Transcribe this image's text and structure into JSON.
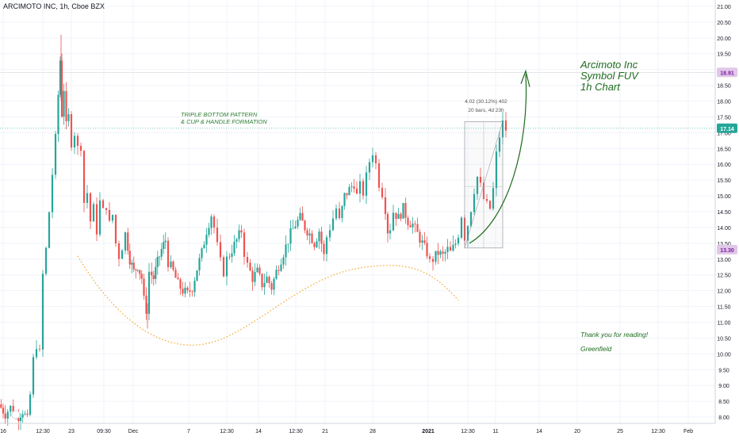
{
  "header": {
    "symbol_line": "ARCIMOTO INC, 1h, Cboe BZX"
  },
  "annotations": {
    "title_lines": [
      "Arcimoto Inc",
      "Symbol FUV",
      "1h Chart"
    ],
    "pattern_lines": [
      "TRIPLE BOTTOM PATTERN",
      "& CUP & HANDLE FORMATION"
    ],
    "thanks": "Thank you for reading!",
    "author": "Greenfield",
    "measure_line1": "4.02 (30.12%) 402",
    "measure_line2": "20 bars, 4d 23h"
  },
  "colors": {
    "up": "#26a69a",
    "down": "#ef5350",
    "cup_curve": "#f5a623",
    "arrow": "#1e6b1e",
    "last_price_bg": "#26a69a",
    "level_bg": "#e1c7e8",
    "level_text": "#7b1fa2"
  },
  "chart_data": {
    "type": "candlestick",
    "price_axis": {
      "ticks": [
        "21.00",
        "20.50",
        "20.00",
        "19.50",
        "19.00",
        "18.50",
        "18.00",
        "17.50",
        "17.00",
        "16.50",
        "16.00",
        "15.50",
        "15.00",
        "14.50",
        "14.00",
        "13.50",
        "13.00",
        "12.50",
        "12.00",
        "11.50",
        "11.00",
        "10.50",
        "10.00",
        "9.50",
        "9.00",
        "8.50",
        "8.00"
      ],
      "range": [
        7.8,
        21.2
      ]
    },
    "time_axis": {
      "ticks": [
        "16",
        "12:30",
        "23",
        "09:30",
        "Dec",
        "7",
        "12:30",
        "14",
        "12:30",
        "21",
        "28",
        "2021",
        "12:30",
        "11",
        "14",
        "20",
        "25",
        "12:30",
        "Feb"
      ]
    },
    "price_labels": [
      {
        "value": 18.91,
        "label": "18.91",
        "style": "level"
      },
      {
        "value": 17.14,
        "label": "17.14",
        "style": "last"
      },
      {
        "value": 13.3,
        "label": "13.30",
        "style": "level"
      }
    ],
    "horizontal_levels": [
      18.91,
      17.14
    ],
    "path": [
      [
        0,
        8.4
      ],
      [
        8,
        8.1
      ],
      [
        15,
        8.3
      ],
      [
        22,
        7.95
      ],
      [
        30,
        8.2
      ],
      [
        36,
        7.9
      ],
      [
        40,
        8.7
      ],
      [
        44,
        9.8
      ],
      [
        48,
        10.3
      ],
      [
        52,
        10.0
      ],
      [
        56,
        12.5
      ],
      [
        60,
        13.3
      ],
      [
        64,
        14.5
      ],
      [
        68,
        15.7
      ],
      [
        72,
        16.8
      ],
      [
        75,
        18.2
      ],
      [
        77,
        19.3
      ],
      [
        79,
        17.6
      ],
      [
        82,
        18.4
      ],
      [
        85,
        17.2
      ],
      [
        88,
        17.5
      ],
      [
        92,
        16.7
      ],
      [
        96,
        17.0
      ],
      [
        100,
        16.5
      ],
      [
        104,
        16.6
      ],
      [
        108,
        14.8
      ],
      [
        112,
        15.1
      ],
      [
        116,
        14.2
      ],
      [
        120,
        14.6
      ],
      [
        124,
        13.9
      ],
      [
        128,
        14.8
      ],
      [
        132,
        14.5
      ],
      [
        136,
        14.7
      ],
      [
        140,
        14.1
      ],
      [
        144,
        14.4
      ],
      [
        148,
        13.5
      ],
      [
        152,
        13.1
      ],
      [
        156,
        13.4
      ],
      [
        160,
        13.8
      ],
      [
        165,
        13.0
      ],
      [
        170,
        12.6
      ],
      [
        175,
        12.8
      ],
      [
        180,
        12.4
      ],
      [
        183,
        11.7
      ],
      [
        186,
        11.4
      ],
      [
        190,
        12.6
      ],
      [
        195,
        12.4
      ],
      [
        200,
        12.9
      ],
      [
        205,
        13.3
      ],
      [
        210,
        13.6
      ],
      [
        214,
        12.9
      ],
      [
        220,
        12.6
      ],
      [
        226,
        12.2
      ],
      [
        232,
        12.0
      ],
      [
        238,
        11.9
      ],
      [
        244,
        12.1
      ],
      [
        250,
        12.7
      ],
      [
        256,
        13.2
      ],
      [
        262,
        13.9
      ],
      [
        268,
        14.4
      ],
      [
        272,
        14.0
      ],
      [
        276,
        13.4
      ],
      [
        280,
        12.9
      ],
      [
        284,
        12.6
      ],
      [
        288,
        13.0
      ],
      [
        294,
        13.3
      ],
      [
        300,
        13.6
      ],
      [
        306,
        13.9
      ],
      [
        310,
        13.2
      ],
      [
        314,
        12.8
      ],
      [
        320,
        12.4
      ],
      [
        326,
        12.6
      ],
      [
        332,
        12.2
      ],
      [
        338,
        12.4
      ],
      [
        344,
        12.1
      ],
      [
        350,
        12.6
      ],
      [
        356,
        13.0
      ],
      [
        362,
        13.4
      ],
      [
        368,
        13.8
      ],
      [
        374,
        14.1
      ],
      [
        380,
        14.3
      ],
      [
        386,
        14.0
      ],
      [
        392,
        13.8
      ],
      [
        398,
        13.5
      ],
      [
        404,
        13.9
      ],
      [
        410,
        13.1
      ],
      [
        414,
        13.7
      ],
      [
        418,
        14.0
      ],
      [
        422,
        14.3
      ],
      [
        426,
        14.6
      ],
      [
        430,
        14.2
      ],
      [
        436,
        15.0
      ],
      [
        442,
        15.2
      ],
      [
        448,
        15.4
      ],
      [
        452,
        15.0
      ],
      [
        456,
        15.3
      ],
      [
        460,
        15.1
      ],
      [
        464,
        15.6
      ],
      [
        468,
        16.1
      ],
      [
        472,
        16.4
      ],
      [
        476,
        16.0
      ],
      [
        480,
        15.4
      ],
      [
        484,
        15.1
      ],
      [
        488,
        14.6
      ],
      [
        490,
        13.9
      ],
      [
        494,
        14.0
      ],
      [
        498,
        14.5
      ],
      [
        504,
        14.3
      ],
      [
        510,
        14.6
      ],
      [
        516,
        14.2
      ],
      [
        522,
        14.1
      ],
      [
        528,
        13.8
      ],
      [
        534,
        13.5
      ],
      [
        540,
        13.2
      ],
      [
        544,
        12.9
      ],
      [
        548,
        13.0
      ],
      [
        554,
        13.2
      ],
      [
        560,
        13.1
      ],
      [
        566,
        13.3
      ],
      [
        570,
        13.2
      ],
      [
        576,
        13.5
      ],
      [
        580,
        13.8
      ],
      [
        584,
        14.4
      ],
      [
        588,
        13.7
      ],
      [
        592,
        14.1
      ],
      [
        596,
        14.6
      ],
      [
        600,
        15.2
      ],
      [
        604,
        15.6
      ],
      [
        608,
        15.3
      ],
      [
        612,
        14.9
      ],
      [
        616,
        14.7
      ],
      [
        620,
        14.6
      ],
      [
        624,
        15.2
      ],
      [
        628,
        16.3
      ],
      [
        632,
        16.9
      ],
      [
        636,
        17.3
      ],
      [
        640,
        17.1
      ]
    ]
  }
}
